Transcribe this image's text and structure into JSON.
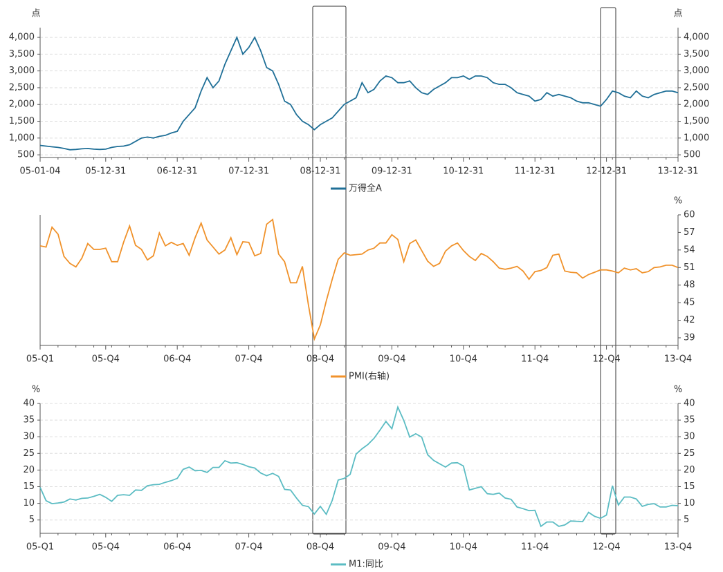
{
  "chart_data": [
    {
      "type": "line",
      "unit_left": "点",
      "unit_right": "点",
      "axis_sides": [
        "left",
        "right"
      ],
      "grid": true,
      "categories": [
        "05-01-04",
        null,
        null,
        null,
        null,
        null,
        null,
        null,
        null,
        null,
        null,
        "05-12-31",
        null,
        null,
        null,
        null,
        null,
        null,
        null,
        null,
        null,
        null,
        null,
        "06-12-31",
        null,
        null,
        null,
        null,
        null,
        null,
        null,
        null,
        null,
        null,
        null,
        "07-12-31",
        null,
        null,
        null,
        null,
        null,
        null,
        null,
        null,
        null,
        null,
        null,
        "08-12-31",
        null,
        null,
        null,
        null,
        null,
        null,
        null,
        null,
        null,
        null,
        null,
        "09-12-31",
        null,
        null,
        null,
        null,
        null,
        null,
        null,
        null,
        null,
        null,
        null,
        "10-12-31",
        null,
        null,
        null,
        null,
        null,
        null,
        null,
        null,
        null,
        null,
        null,
        "11-12-31",
        null,
        null,
        null,
        null,
        null,
        null,
        null,
        null,
        null,
        null,
        null,
        "12-12-31",
        null,
        null,
        null,
        null,
        null,
        null,
        null,
        null,
        null,
        null,
        null,
        "13-12-31"
      ],
      "series": [
        {
          "name": "万得全A",
          "color": "#1f6f97",
          "values": [
            780,
            760,
            740,
            720,
            690,
            650,
            660,
            680,
            690,
            670,
            660,
            670,
            720,
            750,
            760,
            800,
            900,
            1000,
            1030,
            1000,
            1050,
            1080,
            1150,
            1200,
            1500,
            1700,
            1900,
            2400,
            2800,
            2500,
            2700,
            3200,
            3600,
            4000,
            3500,
            3700,
            4000,
            3600,
            3100,
            3000,
            2600,
            2100,
            2000,
            1700,
            1500,
            1400,
            1250,
            1400,
            1500,
            1600,
            1800,
            2000,
            2100,
            2200,
            2650,
            2350,
            2450,
            2700,
            2850,
            2800,
            2650,
            2650,
            2700,
            2500,
            2350,
            2300,
            2450,
            2550,
            2650,
            2800,
            2800,
            2850,
            2750,
            2850,
            2850,
            2800,
            2650,
            2600,
            2600,
            2500,
            2350,
            2300,
            2250,
            2100,
            2150,
            2350,
            2250,
            2300,
            2250,
            2200,
            2100,
            2050,
            2050,
            2000,
            1950,
            2150,
            2400,
            2350,
            2250,
            2200,
            2400,
            2250,
            2200,
            2300,
            2350,
            2400,
            2400,
            2350
          ]
        }
      ],
      "ylim": [
        420,
        4290
      ],
      "yticks": [
        500,
        {
          "value": 1000,
          "label": "1,000"
        },
        {
          "value": 1500,
          "label": "1,500"
        },
        {
          "value": 2000,
          "label": "2,000"
        },
        {
          "value": 2500,
          "label": "2,500"
        },
        {
          "value": 3000,
          "label": "3,000"
        },
        {
          "value": 3500,
          "label": "3,500"
        },
        {
          "value": 4000,
          "label": "4,000"
        }
      ]
    },
    {
      "type": "line",
      "unit_right": "%",
      "axis_sides": [
        "right"
      ],
      "grid": false,
      "categories": [
        "05-Q1",
        null,
        null,
        null,
        null,
        null,
        null,
        null,
        null,
        null,
        null,
        "05-Q4",
        null,
        null,
        null,
        null,
        null,
        null,
        null,
        null,
        null,
        null,
        null,
        "06-Q4",
        null,
        null,
        null,
        null,
        null,
        null,
        null,
        null,
        null,
        null,
        null,
        "07-Q4",
        null,
        null,
        null,
        null,
        null,
        null,
        null,
        null,
        null,
        null,
        null,
        "08-Q4",
        null,
        null,
        null,
        null,
        null,
        null,
        null,
        null,
        null,
        null,
        null,
        "09-Q4",
        null,
        null,
        null,
        null,
        null,
        null,
        null,
        null,
        null,
        null,
        null,
        "10-Q4",
        null,
        null,
        null,
        null,
        null,
        null,
        null,
        null,
        null,
        null,
        null,
        "11-Q4",
        null,
        null,
        null,
        null,
        null,
        null,
        null,
        null,
        null,
        null,
        null,
        "12-Q4",
        null,
        null,
        null,
        null,
        null,
        null,
        null,
        null,
        null,
        null,
        null,
        "13-Q4"
      ],
      "series": [
        {
          "name": "PMI(右轴)",
          "color": "#f0922b",
          "values": [
            54.7,
            54.5,
            57.9,
            56.7,
            52.9,
            51.7,
            51.1,
            52.6,
            55.1,
            54.1,
            54.1,
            54.3,
            52.0,
            52.0,
            55.3,
            58.1,
            54.8,
            54.1,
            52.3,
            53.0,
            56.9,
            54.7,
            55.3,
            54.8,
            55.1,
            53.1,
            56.1,
            58.6,
            55.7,
            54.5,
            53.3,
            54.0,
            56.1,
            53.2,
            55.4,
            55.3,
            53.0,
            53.4,
            58.4,
            59.2,
            53.3,
            52.0,
            48.4,
            48.4,
            51.2,
            44.6,
            38.8,
            41.2,
            45.3,
            49.0,
            52.4,
            53.5,
            53.1,
            53.2,
            53.3,
            54.0,
            54.3,
            55.2,
            55.2,
            56.6,
            55.8,
            52.0,
            55.1,
            55.7,
            53.9,
            52.1,
            51.2,
            51.7,
            53.8,
            54.7,
            55.2,
            53.9,
            52.9,
            52.2,
            53.4,
            52.9,
            52.0,
            50.9,
            50.7,
            50.9,
            51.2,
            50.4,
            49.0,
            50.3,
            50.5,
            51.0,
            53.1,
            53.3,
            50.4,
            50.2,
            50.1,
            49.2,
            49.8,
            50.2,
            50.6,
            50.6,
            50.4,
            50.1,
            50.9,
            50.6,
            50.8,
            50.1,
            50.3,
            51.0,
            51.1,
            51.4,
            51.4,
            51.0
          ]
        }
      ],
      "ylim": [
        37.7,
        60
      ],
      "yticks": [
        39,
        42,
        45,
        48,
        51,
        54,
        57,
        60
      ]
    },
    {
      "type": "line",
      "unit_left": "%",
      "unit_right": "%",
      "axis_sides": [
        "left",
        "right"
      ],
      "grid": true,
      "categories": [
        "05-Q1",
        null,
        null,
        null,
        null,
        null,
        null,
        null,
        null,
        null,
        null,
        "05-Q4",
        null,
        null,
        null,
        null,
        null,
        null,
        null,
        null,
        null,
        null,
        null,
        "06-Q4",
        null,
        null,
        null,
        null,
        null,
        null,
        null,
        null,
        null,
        null,
        null,
        "07-Q4",
        null,
        null,
        null,
        null,
        null,
        null,
        null,
        null,
        null,
        null,
        null,
        "08-Q4",
        null,
        null,
        null,
        null,
        null,
        null,
        null,
        null,
        null,
        null,
        null,
        "09-Q4",
        null,
        null,
        null,
        null,
        null,
        null,
        null,
        null,
        null,
        null,
        null,
        "10-Q4",
        null,
        null,
        null,
        null,
        null,
        null,
        null,
        null,
        null,
        null,
        null,
        "11-Q4",
        null,
        null,
        null,
        null,
        null,
        null,
        null,
        null,
        null,
        null,
        null,
        "12-Q4",
        null,
        null,
        null,
        null,
        null,
        null,
        null,
        null,
        null,
        null,
        null,
        "13-Q4"
      ],
      "series": [
        {
          "name": "M1:同比",
          "color": "#5bbcc3",
          "values": [
            14.8,
            10.8,
            9.9,
            10.1,
            10.4,
            11.3,
            11.0,
            11.5,
            11.6,
            12.1,
            12.7,
            11.8,
            10.6,
            12.4,
            12.6,
            12.4,
            14.0,
            13.9,
            15.3,
            15.6,
            15.7,
            16.3,
            16.8,
            17.5,
            20.2,
            20.9,
            19.8,
            19.9,
            19.3,
            20.8,
            20.8,
            22.8,
            22.1,
            22.2,
            21.7,
            21.0,
            20.6,
            19.1,
            18.3,
            19.0,
            18.1,
            14.2,
            14.0,
            11.6,
            9.4,
            9.0,
            6.8,
            9.1,
            6.7,
            10.9,
            17.0,
            17.5,
            18.7,
            24.8,
            26.4,
            27.7,
            29.5,
            32.0,
            34.6,
            32.4,
            38.9,
            34.9,
            29.9,
            30.9,
            29.9,
            24.6,
            22.9,
            21.9,
            20.9,
            22.1,
            22.2,
            21.2,
            14.0,
            14.5,
            15.0,
            12.9,
            12.7,
            13.1,
            11.6,
            11.2,
            8.9,
            8.4,
            7.8,
            7.9,
            3.1,
            4.4,
            4.4,
            3.1,
            3.5,
            4.7,
            4.6,
            4.5,
            7.3,
            6.1,
            5.5,
            6.5,
            15.3,
            9.5,
            11.9,
            11.9,
            11.3,
            9.1,
            9.7,
            9.9,
            8.9,
            8.9,
            9.4,
            9.3
          ]
        }
      ],
      "ylim": [
        1,
        40
      ],
      "yticks": [
        5,
        10,
        15,
        20,
        25,
        30,
        35,
        40
      ]
    }
  ]
}
